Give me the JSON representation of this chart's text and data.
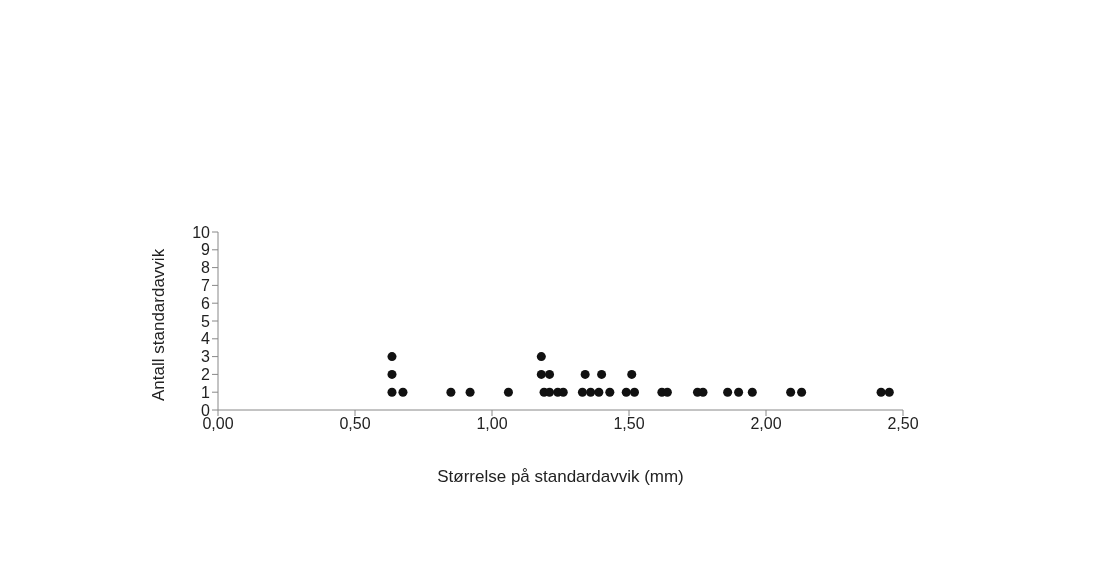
{
  "chart_data": {
    "type": "scatter",
    "xlabel": "Størrelse på standardavvik (mm)",
    "ylabel": "Antall standardavvik",
    "x": [
      0.635,
      0.675,
      0.85,
      0.92,
      1.06,
      1.19,
      1.21,
      1.24,
      1.26,
      1.33,
      1.36,
      1.39,
      1.43,
      1.49,
      1.52,
      1.62,
      1.64,
      1.75,
      1.77,
      1.86,
      1.9,
      1.95,
      2.09,
      2.13,
      2.42,
      2.45,
      0.635,
      1.18,
      1.21,
      1.34,
      1.4,
      1.51,
      0.635,
      1.18
    ],
    "values": [
      1,
      1,
      1,
      1,
      1,
      1,
      1,
      1,
      1,
      1,
      1,
      1,
      1,
      1,
      1,
      1,
      1,
      1,
      1,
      1,
      1,
      1,
      1,
      1,
      1,
      1,
      2,
      2,
      2,
      2,
      2,
      2,
      3,
      3
    ],
    "color": "#111111",
    "marker": "circle",
    "xlim": [
      0,
      2.5
    ],
    "xticks": [
      {
        "value": 0,
        "label": "0,00"
      },
      {
        "value": 0.5,
        "label": "0,50"
      },
      {
        "value": 1,
        "label": "1,00"
      },
      {
        "value": 1.5,
        "label": "1,50"
      },
      {
        "value": 2,
        "label": "2,00"
      },
      {
        "value": 2.5,
        "label": "2,50"
      }
    ],
    "ylim": [
      0,
      10
    ],
    "yticks": [
      0,
      1,
      2,
      3,
      4,
      5,
      6,
      7,
      8,
      9,
      10
    ],
    "grid": false,
    "legend": false
  }
}
